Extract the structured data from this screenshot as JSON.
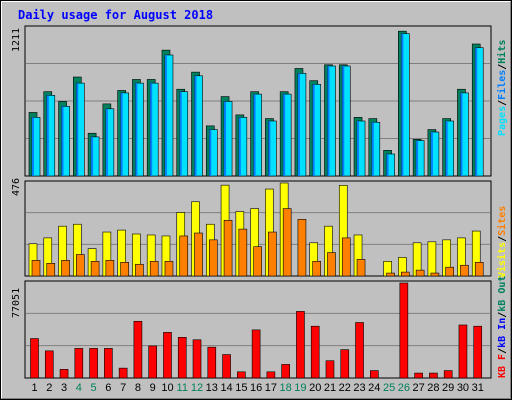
{
  "colors": {
    "background": "#c0c0c0",
    "title": "#0000ff",
    "grid": "#808080",
    "hits_top": "#00805c",
    "hits_side": "#006040",
    "files_top": "#00c0ff",
    "files_side": "#0080ff",
    "pages_top": "#00e0ff",
    "pages_side": "#00a0ff",
    "visits": "#ffff00",
    "sites": "#ff8000",
    "kbf": "#ff0000",
    "weekend": "#00805c",
    "weekday": "#000000"
  },
  "chart_data": [
    {
      "type": "bar",
      "title": "Daily usage for August 2018",
      "ymax_label": "1211",
      "ylim": [
        0,
        1211
      ],
      "legend": [
        {
          "name": "Pages",
          "color": "#00e0ff"
        },
        {
          "sep": "/"
        },
        {
          "name": "Files",
          "color": "#0080ff"
        },
        {
          "sep": "/"
        },
        {
          "name": "Hits",
          "color": "#00805c"
        }
      ],
      "series": [
        {
          "name": "Hits",
          "values": [
            520,
            690,
            610,
            810,
            350,
            590,
            700,
            790,
            790,
            1030,
            710,
            850,
            410,
            650,
            500,
            690,
            470,
            690,
            880,
            780,
            910,
            910,
            480,
            470,
            210,
            1185,
            300,
            380,
            470,
            710,
            1080
          ]
        },
        {
          "name": "Files",
          "values": [
            480,
            660,
            570,
            760,
            320,
            550,
            680,
            760,
            760,
            990,
            690,
            820,
            380,
            610,
            480,
            670,
            450,
            670,
            840,
            750,
            900,
            900,
            450,
            440,
            180,
            1165,
            290,
            360,
            450,
            680,
            1050
          ]
        }
      ],
      "categories": [
        "1",
        "2",
        "3",
        "4",
        "5",
        "6",
        "7",
        "8",
        "9",
        "10",
        "11",
        "12",
        "13",
        "14",
        "15",
        "16",
        "17",
        "18",
        "19",
        "20",
        "21",
        "22",
        "23",
        "24",
        "25",
        "26",
        "27",
        "28",
        "29",
        "30",
        "31"
      ]
    },
    {
      "type": "bar",
      "ymax_label": "476",
      "ylim": [
        0,
        476
      ],
      "legend": [
        {
          "name": "Visits",
          "color": "#ffff00"
        },
        {
          "sep": "/"
        },
        {
          "name": "Sites",
          "color": "#ff8000"
        }
      ],
      "series": [
        {
          "name": "Visits",
          "values": [
            165,
            195,
            255,
            265,
            140,
            225,
            235,
            215,
            210,
            205,
            325,
            380,
            265,
            465,
            330,
            345,
            445,
            476,
            0,
            170,
            255,
            464,
            210,
            0,
            75,
            95,
            170,
            175,
            185,
            195,
            230
          ]
        },
        {
          "name": "Sites",
          "values": [
            80,
            65,
            80,
            110,
            75,
            80,
            70,
            60,
            75,
            75,
            205,
            220,
            185,
            285,
            240,
            150,
            225,
            345,
            290,
            75,
            120,
            195,
            85,
            0,
            15,
            20,
            30,
            15,
            45,
            55,
            70
          ]
        }
      ]
    },
    {
      "type": "bar",
      "ymax_label": "77051",
      "ylim": [
        0,
        77051
      ],
      "legend": [
        {
          "name": "KB F",
          "color": "#ff0000"
        },
        {
          "sep": "/"
        },
        {
          "name": "kB In",
          "color": "#0000ff"
        },
        {
          "sep": "/"
        },
        {
          "name": "kB Out",
          "color": "#00805c"
        }
      ],
      "series": [
        {
          "name": "KB F",
          "values": [
            32000,
            22000,
            7000,
            24000,
            24000,
            24000,
            8000,
            46000,
            26000,
            37000,
            33000,
            31000,
            25000,
            19000,
            5000,
            39000,
            5000,
            11000,
            54000,
            42000,
            14000,
            23000,
            45000,
            6000,
            0,
            77051,
            4000,
            4000,
            6000,
            43000,
            42000
          ]
        }
      ]
    }
  ],
  "day_labels": [
    "1",
    "2",
    "3",
    "4",
    "5",
    "6",
    "7",
    "8",
    "9",
    "10",
    "11",
    "12",
    "13",
    "14",
    "15",
    "16",
    "17",
    "18",
    "19",
    "20",
    "21",
    "22",
    "23",
    "24",
    "25",
    "26",
    "27",
    "28",
    "29",
    "30",
    "31"
  ],
  "weekend_days": [
    4,
    5,
    11,
    12,
    18,
    19,
    25,
    26
  ]
}
